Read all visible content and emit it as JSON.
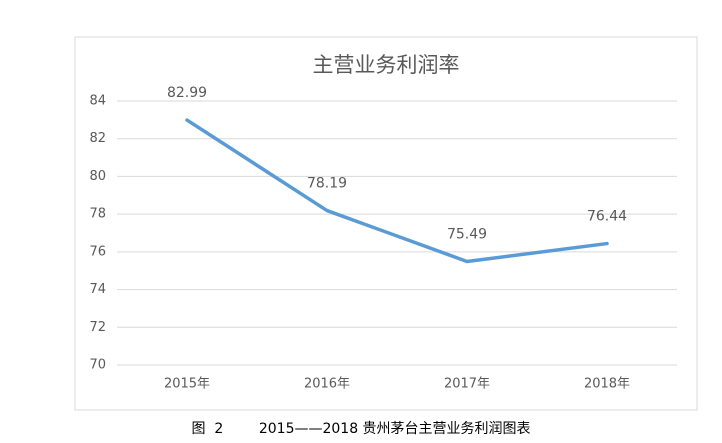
{
  "chart_data": {
    "type": "line",
    "title": "主营业务利润率",
    "categories": [
      "2015年",
      "2016年",
      "2017年",
      "2018年"
    ],
    "series": [
      {
        "name": "主营业务利润率",
        "color": "#5b9bd5",
        "values": [
          82.99,
          78.19,
          75.49,
          76.44
        ]
      }
    ],
    "ylim": [
      70,
      84
    ],
    "yticks": [
      70,
      72,
      74,
      76,
      78,
      80,
      82,
      84
    ],
    "grid": true
  },
  "caption": "图  2        2015——2018 贵州茅台主营业务利润图表"
}
